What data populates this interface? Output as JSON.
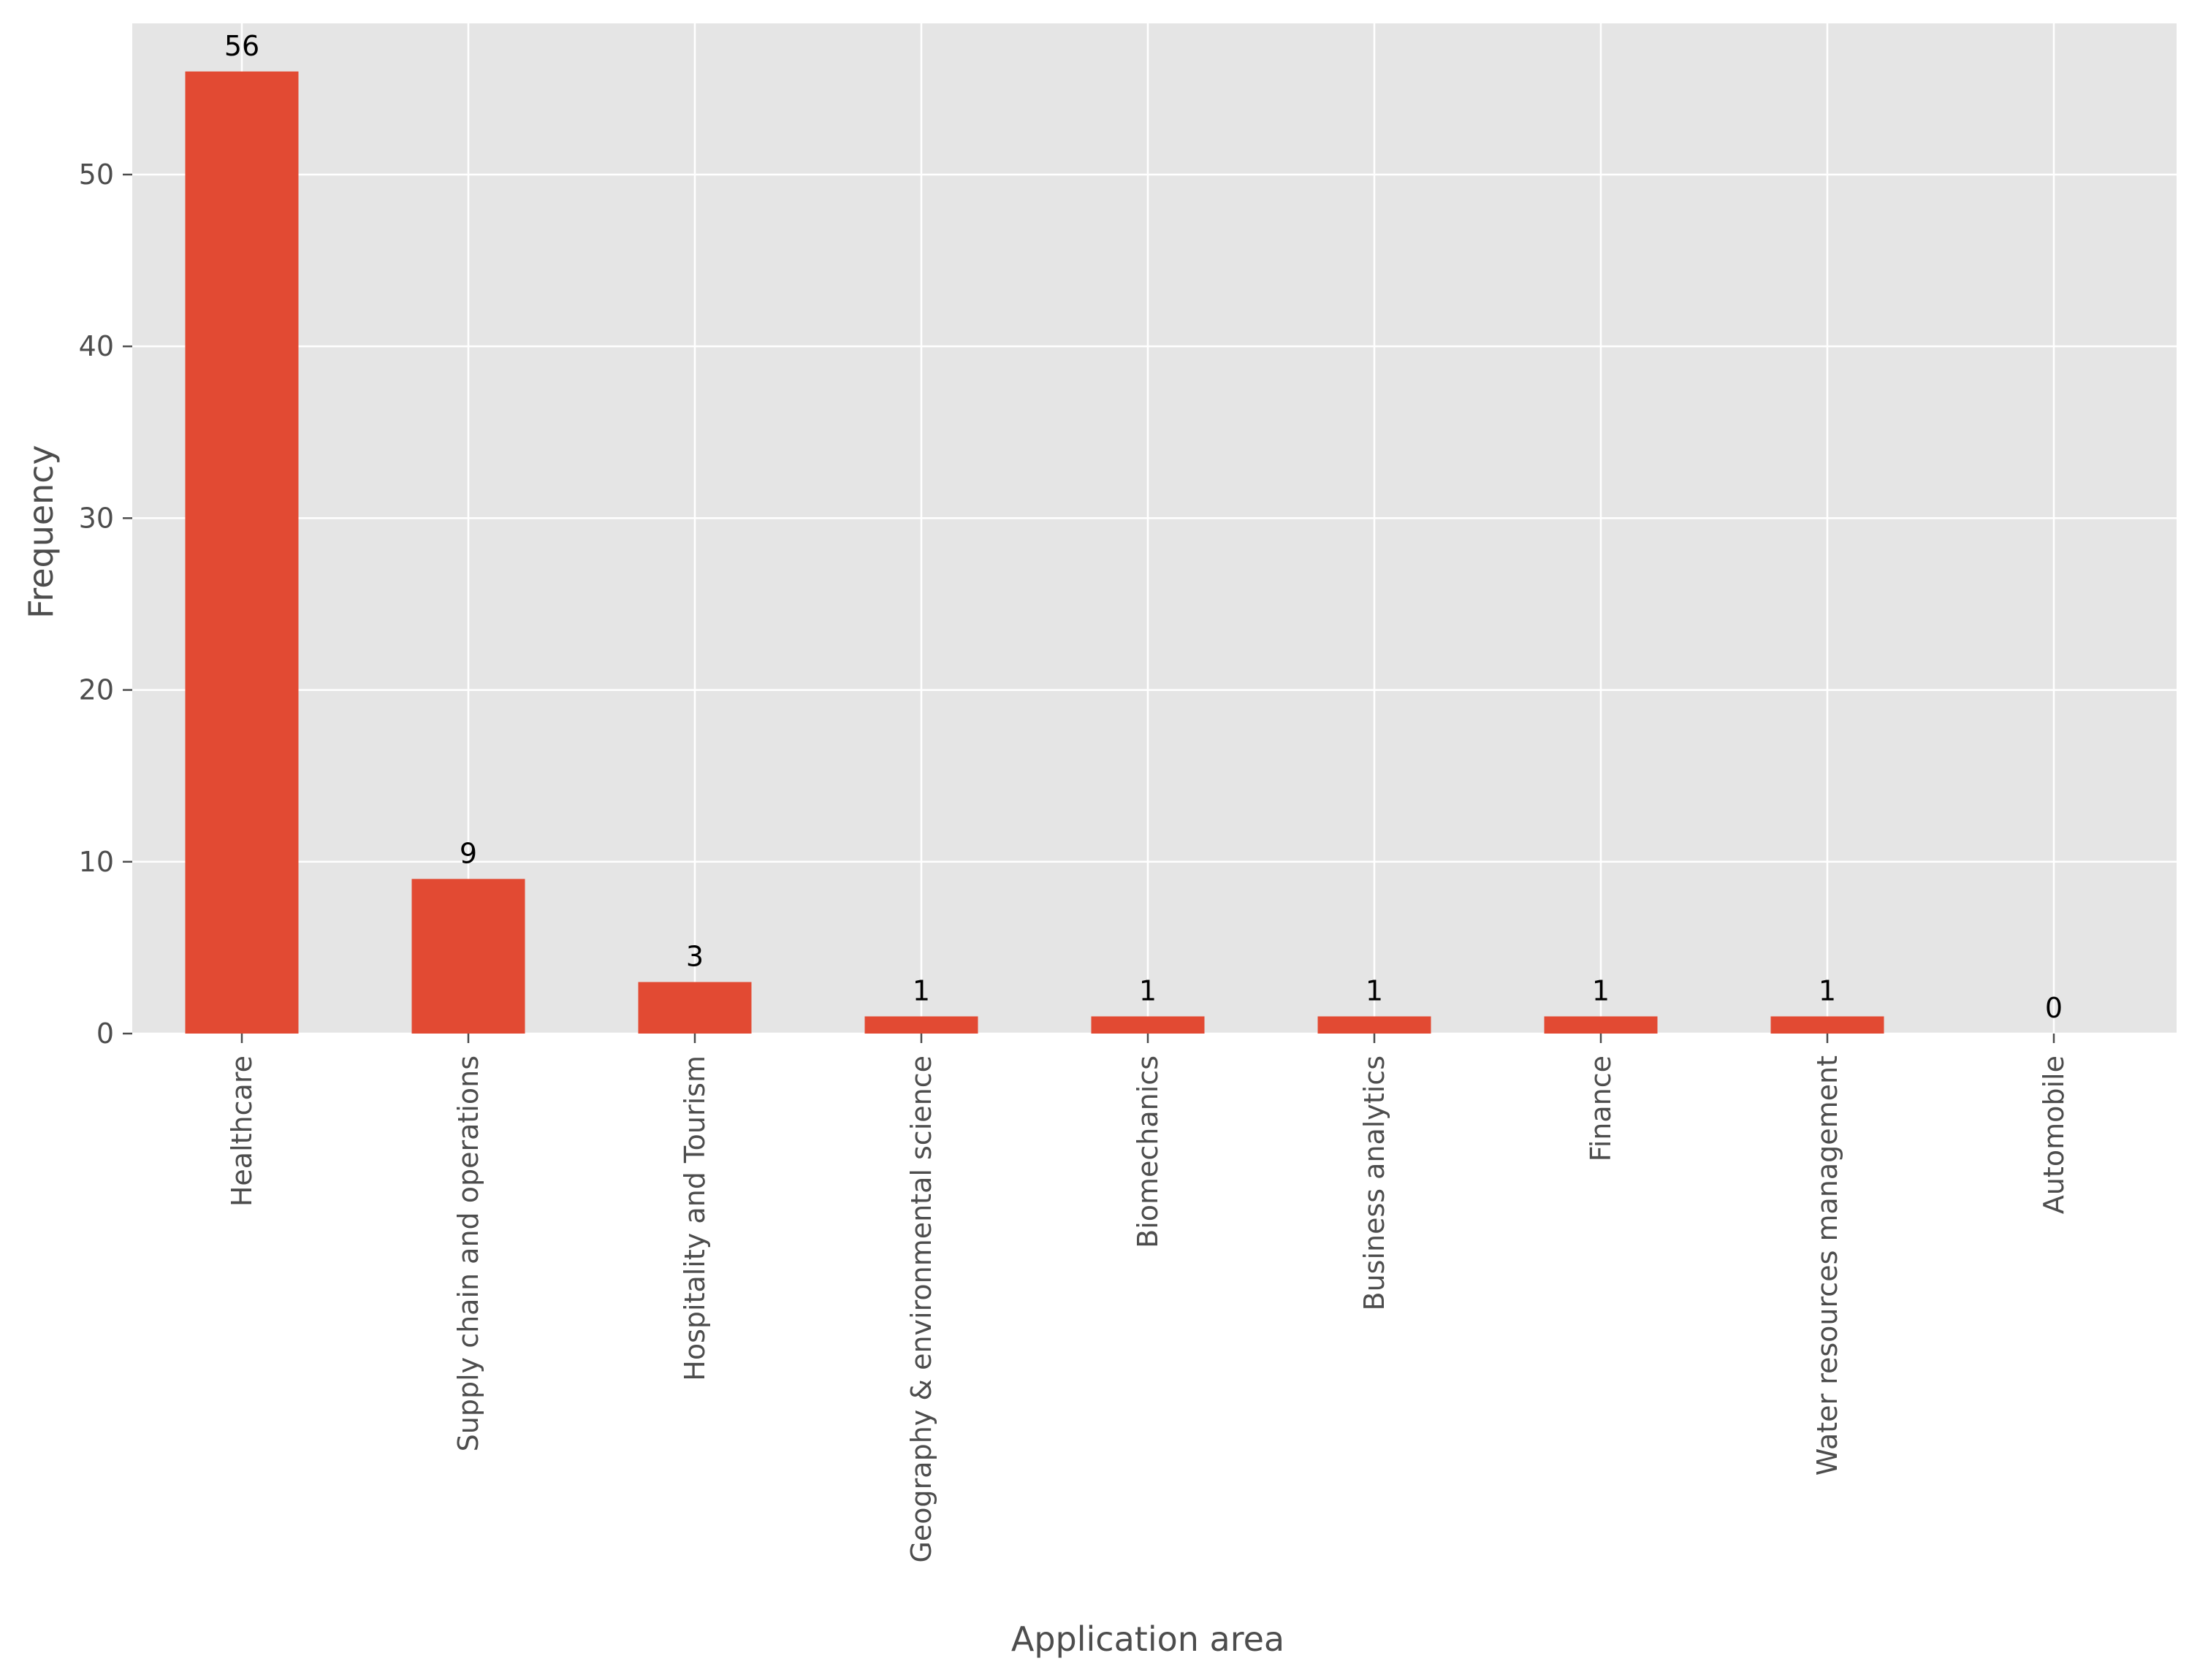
{
  "chart_data": {
    "type": "bar",
    "xlabel": "Application area",
    "ylabel": "Frequency",
    "ylim": [
      0,
      58.8
    ],
    "yticks": [
      0,
      10,
      20,
      30,
      40,
      50
    ],
    "grid": true,
    "categories": [
      "Healthcare",
      "Supply chain and operations",
      "Hospitality and Tourism",
      "Geography & environmental science",
      "Biomechanics",
      "Business analytics",
      "Finance",
      "Water resources management",
      "Automobile"
    ],
    "values": [
      56,
      9,
      3,
      1,
      1,
      1,
      1,
      1,
      0
    ],
    "colors": {
      "bar": "#e24a33",
      "plot_background": "#e5e5e5",
      "grid": "#ffffff",
      "tick_text": "#4d4d4d"
    }
  }
}
